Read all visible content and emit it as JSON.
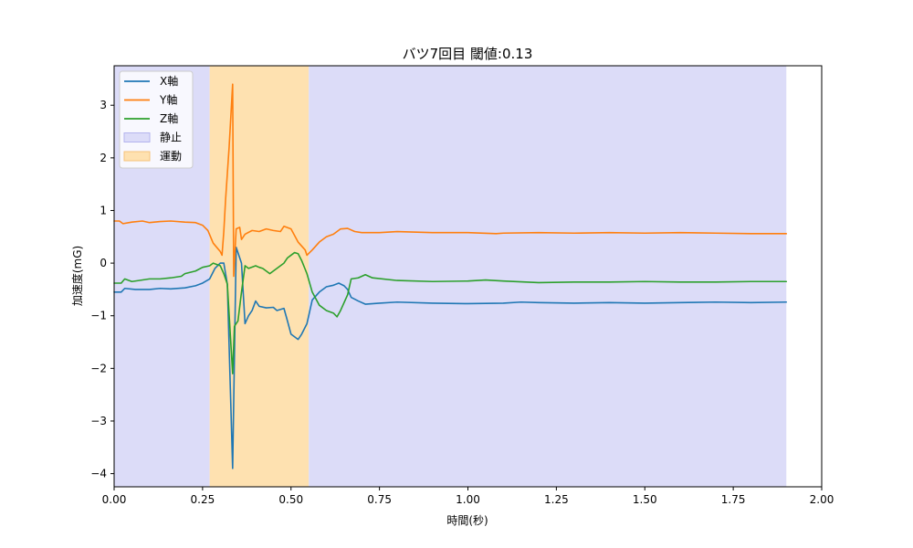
{
  "chart_data": {
    "type": "line",
    "title": "バツ7回目 閾値:0.13",
    "xlabel": "時間(秒)",
    "ylabel": "加速度(mG)",
    "xlim": [
      0,
      2.0
    ],
    "ylim": [
      -4.25,
      3.75
    ],
    "xticks": [
      0.0,
      0.25,
      0.5,
      0.75,
      1.0,
      1.25,
      1.5,
      1.75,
      2.0
    ],
    "xtick_labels": [
      "0.00",
      "0.25",
      "0.50",
      "0.75",
      "1.00",
      "1.25",
      "1.50",
      "1.75",
      "2.00"
    ],
    "yticks": [
      -4,
      -3,
      -2,
      -1,
      0,
      1,
      2,
      3
    ],
    "ytick_labels": [
      "−4",
      "−3",
      "−2",
      "−1",
      "0",
      "1",
      "2",
      "3"
    ],
    "grid": false,
    "legend_position": "top-left",
    "regions": [
      {
        "name": "静止",
        "x0": 0.0,
        "x1": 0.27,
        "color": "#dcdcf8"
      },
      {
        "name": "運動",
        "x0": 0.27,
        "x1": 0.55,
        "color": "#fee1b0"
      },
      {
        "name": "静止",
        "x0": 0.55,
        "x1": 1.9,
        "color": "#dcdcf8"
      }
    ],
    "legend": [
      {
        "label": "X軸",
        "kind": "line",
        "color": "#1f77b4"
      },
      {
        "label": "Y軸",
        "kind": "line",
        "color": "#ff7f0e"
      },
      {
        "label": "Z軸",
        "kind": "line",
        "color": "#2ca02c"
      },
      {
        "label": "静止",
        "kind": "patch",
        "color": "#dcdcf8",
        "edge": "#b4b4ee"
      },
      {
        "label": "運動",
        "kind": "patch",
        "color": "#fee1b0",
        "edge": "#f6c27a"
      }
    ],
    "series": [
      {
        "name": "X軸",
        "color": "#1f77b4",
        "points": [
          [
            0.0,
            -0.55
          ],
          [
            0.02,
            -0.55
          ],
          [
            0.03,
            -0.48
          ],
          [
            0.06,
            -0.5
          ],
          [
            0.1,
            -0.5
          ],
          [
            0.13,
            -0.48
          ],
          [
            0.16,
            -0.49
          ],
          [
            0.2,
            -0.47
          ],
          [
            0.23,
            -0.43
          ],
          [
            0.25,
            -0.38
          ],
          [
            0.27,
            -0.3
          ],
          [
            0.285,
            -0.1
          ],
          [
            0.3,
            0.0
          ],
          [
            0.31,
            0.0
          ],
          [
            0.32,
            -0.4
          ],
          [
            0.335,
            -3.9
          ],
          [
            0.345,
            0.3
          ],
          [
            0.36,
            0.0
          ],
          [
            0.37,
            -1.15
          ],
          [
            0.38,
            -1.0
          ],
          [
            0.39,
            -0.9
          ],
          [
            0.4,
            -0.72
          ],
          [
            0.41,
            -0.82
          ],
          [
            0.43,
            -0.85
          ],
          [
            0.45,
            -0.84
          ],
          [
            0.46,
            -0.9
          ],
          [
            0.48,
            -0.86
          ],
          [
            0.49,
            -1.1
          ],
          [
            0.5,
            -1.35
          ],
          [
            0.52,
            -1.45
          ],
          [
            0.53,
            -1.35
          ],
          [
            0.545,
            -1.15
          ],
          [
            0.56,
            -0.7
          ],
          [
            0.58,
            -0.55
          ],
          [
            0.6,
            -0.45
          ],
          [
            0.62,
            -0.42
          ],
          [
            0.635,
            -0.38
          ],
          [
            0.65,
            -0.43
          ],
          [
            0.66,
            -0.5
          ],
          [
            0.67,
            -0.65
          ],
          [
            0.69,
            -0.72
          ],
          [
            0.71,
            -0.78
          ],
          [
            0.75,
            -0.76
          ],
          [
            0.8,
            -0.74
          ],
          [
            0.9,
            -0.76
          ],
          [
            1.0,
            -0.77
          ],
          [
            1.1,
            -0.76
          ],
          [
            1.15,
            -0.74
          ],
          [
            1.2,
            -0.75
          ],
          [
            1.3,
            -0.76
          ],
          [
            1.4,
            -0.75
          ],
          [
            1.5,
            -0.76
          ],
          [
            1.6,
            -0.75
          ],
          [
            1.7,
            -0.74
          ],
          [
            1.8,
            -0.75
          ],
          [
            1.9,
            -0.74
          ]
        ]
      },
      {
        "name": "Y軸",
        "color": "#ff7f0e",
        "points": [
          [
            0.0,
            0.8
          ],
          [
            0.015,
            0.8
          ],
          [
            0.025,
            0.75
          ],
          [
            0.05,
            0.78
          ],
          [
            0.08,
            0.8
          ],
          [
            0.1,
            0.77
          ],
          [
            0.13,
            0.79
          ],
          [
            0.16,
            0.8
          ],
          [
            0.2,
            0.78
          ],
          [
            0.23,
            0.77
          ],
          [
            0.25,
            0.72
          ],
          [
            0.265,
            0.62
          ],
          [
            0.28,
            0.38
          ],
          [
            0.29,
            0.3
          ],
          [
            0.3,
            0.22
          ],
          [
            0.305,
            0.15
          ],
          [
            0.31,
            0.6
          ],
          [
            0.315,
            1.2
          ],
          [
            0.325,
            2.2
          ],
          [
            0.335,
            3.4
          ],
          [
            0.338,
            -0.25
          ],
          [
            0.345,
            0.65
          ],
          [
            0.355,
            0.68
          ],
          [
            0.36,
            0.45
          ],
          [
            0.37,
            0.55
          ],
          [
            0.39,
            0.62
          ],
          [
            0.41,
            0.6
          ],
          [
            0.43,
            0.65
          ],
          [
            0.45,
            0.62
          ],
          [
            0.47,
            0.6
          ],
          [
            0.48,
            0.7
          ],
          [
            0.5,
            0.65
          ],
          [
            0.52,
            0.4
          ],
          [
            0.54,
            0.25
          ],
          [
            0.545,
            0.15
          ],
          [
            0.56,
            0.25
          ],
          [
            0.58,
            0.4
          ],
          [
            0.6,
            0.5
          ],
          [
            0.62,
            0.55
          ],
          [
            0.64,
            0.65
          ],
          [
            0.66,
            0.66
          ],
          [
            0.68,
            0.6
          ],
          [
            0.7,
            0.58
          ],
          [
            0.75,
            0.58
          ],
          [
            0.8,
            0.6
          ],
          [
            0.9,
            0.58
          ],
          [
            1.0,
            0.58
          ],
          [
            1.08,
            0.56
          ],
          [
            1.1,
            0.57
          ],
          [
            1.2,
            0.58
          ],
          [
            1.3,
            0.57
          ],
          [
            1.4,
            0.58
          ],
          [
            1.5,
            0.57
          ],
          [
            1.6,
            0.58
          ],
          [
            1.7,
            0.57
          ],
          [
            1.8,
            0.56
          ],
          [
            1.9,
            0.56
          ]
        ]
      },
      {
        "name": "Z軸",
        "color": "#2ca02c",
        "points": [
          [
            0.0,
            -0.38
          ],
          [
            0.02,
            -0.38
          ],
          [
            0.03,
            -0.3
          ],
          [
            0.05,
            -0.35
          ],
          [
            0.07,
            -0.33
          ],
          [
            0.1,
            -0.3
          ],
          [
            0.13,
            -0.3
          ],
          [
            0.16,
            -0.28
          ],
          [
            0.19,
            -0.25
          ],
          [
            0.2,
            -0.2
          ],
          [
            0.23,
            -0.15
          ],
          [
            0.25,
            -0.08
          ],
          [
            0.27,
            -0.05
          ],
          [
            0.28,
            0.0
          ],
          [
            0.3,
            -0.05
          ],
          [
            0.31,
            -0.2
          ],
          [
            0.32,
            -0.4
          ],
          [
            0.335,
            -2.1
          ],
          [
            0.34,
            -1.2
          ],
          [
            0.35,
            -1.1
          ],
          [
            0.36,
            -0.55
          ],
          [
            0.37,
            -0.05
          ],
          [
            0.38,
            -0.1
          ],
          [
            0.4,
            -0.05
          ],
          [
            0.41,
            -0.08
          ],
          [
            0.42,
            -0.1
          ],
          [
            0.43,
            -0.15
          ],
          [
            0.44,
            -0.2
          ],
          [
            0.46,
            -0.1
          ],
          [
            0.48,
            0.0
          ],
          [
            0.49,
            0.1
          ],
          [
            0.5,
            0.15
          ],
          [
            0.51,
            0.2
          ],
          [
            0.52,
            0.18
          ],
          [
            0.53,
            0.05
          ],
          [
            0.545,
            -0.2
          ],
          [
            0.56,
            -0.55
          ],
          [
            0.58,
            -0.8
          ],
          [
            0.6,
            -0.9
          ],
          [
            0.62,
            -0.95
          ],
          [
            0.63,
            -1.02
          ],
          [
            0.64,
            -0.9
          ],
          [
            0.65,
            -0.75
          ],
          [
            0.66,
            -0.6
          ],
          [
            0.67,
            -0.3
          ],
          [
            0.69,
            -0.28
          ],
          [
            0.71,
            -0.22
          ],
          [
            0.73,
            -0.28
          ],
          [
            0.8,
            -0.33
          ],
          [
            0.9,
            -0.35
          ],
          [
            1.0,
            -0.34
          ],
          [
            1.05,
            -0.32
          ],
          [
            1.1,
            -0.34
          ],
          [
            1.2,
            -0.37
          ],
          [
            1.3,
            -0.36
          ],
          [
            1.4,
            -0.36
          ],
          [
            1.5,
            -0.35
          ],
          [
            1.6,
            -0.36
          ],
          [
            1.7,
            -0.36
          ],
          [
            1.8,
            -0.35
          ],
          [
            1.9,
            -0.35
          ]
        ]
      }
    ]
  }
}
